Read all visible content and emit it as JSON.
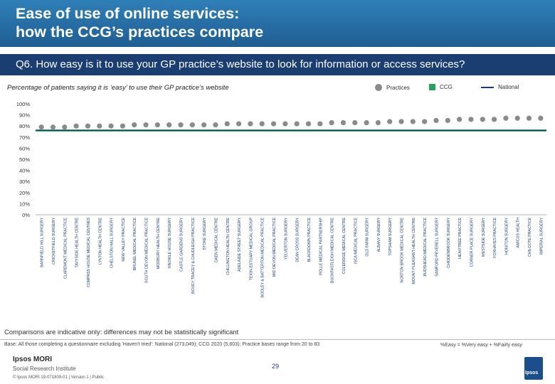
{
  "header": {
    "title": "Ease of use of online services:\nhow the CCG’s practices compare",
    "question": "Q6. How easy is it to use your GP practice’s website to look for information or access services?"
  },
  "caption": "Percentage of patients saying it is ‘easy’ to use their GP practice’s website",
  "legend": {
    "practices": "Practices",
    "ccg": "CCG",
    "national": "National"
  },
  "colors": {
    "header_band": "#2f7fb8",
    "subtitle_band": "#1a3d72",
    "practice_marker": "#8a8a8a",
    "ccg_bar": "#27a05a",
    "national_line": "#1a3d72"
  },
  "chart_data": {
    "type": "scatter",
    "ylim": [
      0,
      100
    ],
    "yticks": [
      "0%",
      "10%",
      "20%",
      "30%",
      "40%",
      "50%",
      "60%",
      "70%",
      "80%",
      "90%",
      "100%"
    ],
    "categories": [
      "BARNFIELD HILL SURGERY",
      "CRICKETFIELD SURGERY",
      "CLAREMONT MEDICAL PRACTICE",
      "TAVYSIDE HEALTH CENTRE",
      "COMPASS HOUSE MEDICAL CENTRES",
      "LYNTON HEALTH CENTRE",
      "CHELSTON HALL SURGERY",
      "NEW VALLEY PRACTICE",
      "BRUNEL MEDICAL PRACTICE",
      "SOUTH DEVON MEDICAL PRACTICE",
      "MODBURY HEALTH CENTRE",
      "KNOWLE HOUSE SURGERY",
      "CASTLE GARDENS SURGERY",
      "BOVEY TRACEY & CHUDLEIGH PRACTICE",
      "STOKE SURGERY",
      "DAEN MEDICAL CENTRE",
      "CHILLINGTON HEALTH CENTRE",
      "ADELAIDE STREET SURGERY",
      "TEIGN ESTUARY MEDICAL GROUP",
      "BODLEY & BATTERTON MEDICAL PRACTICE",
      "MID DEVON MEDICAL PRACTICE",
      "YELVERTON SURGERY",
      "DEAN CROSS SURGERY",
      "BLACKDOWN PRACTICE",
      "ROLLE MEDICAL PARTNERSHIP",
      "BUCKFASTLEIGH MEDICAL CENTRE",
      "COLERIDGE MEDICAL CENTRE",
      "ISCA MEDICAL PRACTICE",
      "OLD FARM SURGERY",
      "ALBANY SURGERY",
      "TOPSHAM SURGERY",
      "NORTON BROOK MEDICAL CENTRE",
      "MOUNT PLEASANT HEALTH CENTRE",
      "BUDSHEAD MEDICAL PRACTICE",
      "SAMFORD PEVERELL SURGERY",
      "CHIDDENBROOK SURGERY",
      "HEAVITREE PRACTICE",
      "CORNER PLACE SURGERY",
      "WESTSIDE SURGERY",
      "FOXHAYES PRACTICE",
      "HONITON SURGERY",
      "AMICUS HEALTH",
      "CHILCOTE PRACTICE",
      "IMPERIAL SURGERY"
    ],
    "values": [
      79,
      79,
      79,
      80,
      80,
      80,
      80,
      80,
      81,
      81,
      81,
      81,
      81,
      81,
      81,
      81,
      82,
      82,
      82,
      82,
      82,
      82,
      82,
      82,
      82,
      83,
      83,
      83,
      83,
      83,
      84,
      84,
      84,
      84,
      85,
      85,
      86,
      86,
      86,
      86,
      87,
      87,
      87,
      87
    ],
    "ccg_value": 76,
    "national_value": 76,
    "grid": false,
    "legend_position": "top-right"
  },
  "footer": {
    "note": "Comparisons are indicative only: differences may not be statistically significant",
    "base": "Base: All those completing a questionnaire excluding ‘Haven’t tried’: National (273,049); CCG 2020 (5,603); Practice bases range from 20 to 83",
    "easy_definition": "%Easy = %Very easy + %Fairly easy",
    "logo_name": "Ipsos MORI",
    "logo_subtitle": "Social Research Institute",
    "copyright": "© Ipsos MORI    19-071809-01 | Version 1 | Public",
    "page_number": "29",
    "ipsos_logo_text": "Ipsos"
  }
}
